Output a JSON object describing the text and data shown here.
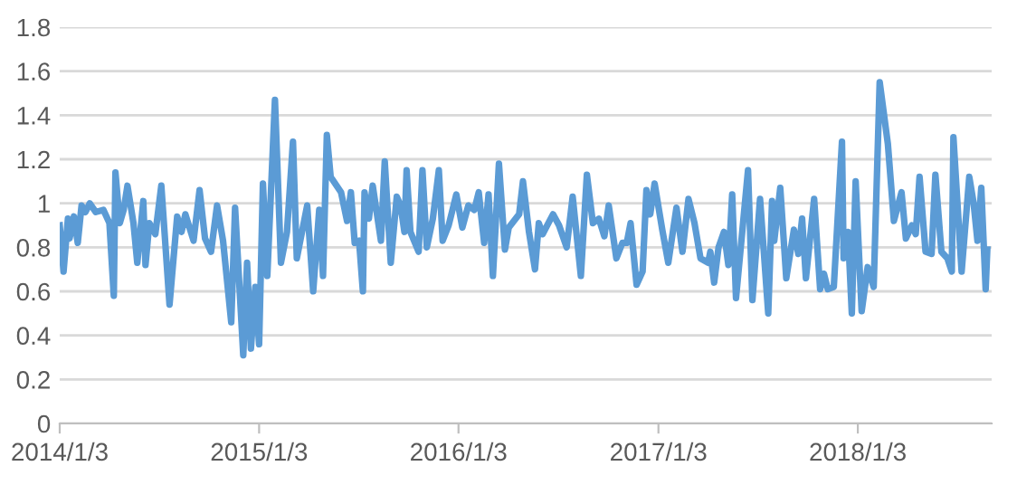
{
  "chart_data": {
    "type": "line",
    "x": [
      "2014-01-03",
      "2014-01-10",
      "2014-01-18",
      "2014-01-21",
      "2014-01-29",
      "2014-02-05",
      "2014-02-12",
      "2014-02-19",
      "2014-02-27",
      "2014-03-10",
      "2014-03-24",
      "2014-04-04",
      "2014-04-12",
      "2014-04-15",
      "2014-04-23",
      "2014-04-30",
      "2014-05-07",
      "2014-05-18",
      "2014-05-25",
      "2014-06-05",
      "2014-06-09",
      "2014-06-16",
      "2014-06-27",
      "2014-07-08",
      "2014-07-23",
      "2014-08-06",
      "2014-08-14",
      "2014-08-21",
      "2014-09-05",
      "2014-09-16",
      "2014-09-26",
      "2014-10-07",
      "2014-10-18",
      "2014-10-29",
      "2014-11-13",
      "2014-11-20",
      "2014-12-05",
      "2014-12-12",
      "2014-12-19",
      "2014-12-27",
      "2015-01-03",
      "2015-01-10",
      "2015-01-18",
      "2015-02-01",
      "2015-02-12",
      "2015-02-23",
      "2015-03-06",
      "2015-03-13",
      "2015-04-01",
      "2015-04-12",
      "2015-04-23",
      "2015-04-30",
      "2015-05-07",
      "2015-05-14",
      "2015-06-02",
      "2015-06-13",
      "2015-06-20",
      "2015-06-27",
      "2015-07-05",
      "2015-07-12",
      "2015-07-15",
      "2015-07-23",
      "2015-07-30",
      "2015-08-14",
      "2015-08-21",
      "2015-09-01",
      "2015-09-12",
      "2015-09-19",
      "2015-09-26",
      "2015-09-30",
      "2015-10-07",
      "2015-10-22",
      "2015-10-29",
      "2015-11-06",
      "2015-11-17",
      "2015-11-28",
      "2015-12-05",
      "2015-12-16",
      "2015-12-30",
      "2016-01-10",
      "2016-01-21",
      "2016-02-01",
      "2016-02-09",
      "2016-02-19",
      "2016-02-27",
      "2016-03-06",
      "2016-03-17",
      "2016-03-28",
      "2016-04-04",
      "2016-04-23",
      "2016-04-30",
      "2016-05-11",
      "2016-05-22",
      "2016-05-29",
      "2016-06-05",
      "2016-06-24",
      "2016-07-05",
      "2016-07-19",
      "2016-07-30",
      "2016-08-14",
      "2016-08-25",
      "2016-09-05",
      "2016-09-16",
      "2016-09-26",
      "2016-10-04",
      "2016-10-18",
      "2016-10-29",
      "2016-11-06",
      "2016-11-13",
      "2016-11-24",
      "2016-12-05",
      "2016-12-12",
      "2016-12-19",
      "2016-12-27",
      "2017-01-10",
      "2017-01-21",
      "2017-02-05",
      "2017-02-16",
      "2017-02-27",
      "2017-03-10",
      "2017-03-21",
      "2017-04-04",
      "2017-04-08",
      "2017-04-15",
      "2017-04-23",
      "2017-05-03",
      "2017-05-11",
      "2017-05-18",
      "2017-05-25",
      "2017-06-16",
      "2017-06-24",
      "2017-07-08",
      "2017-07-23",
      "2017-07-30",
      "2017-08-03",
      "2017-08-14",
      "2017-08-25",
      "2017-09-08",
      "2017-09-16",
      "2017-09-23",
      "2017-09-30",
      "2017-10-15",
      "2017-10-26",
      "2017-11-02",
      "2017-11-09",
      "2017-11-20",
      "2017-12-05",
      "2017-12-08",
      "2017-12-16",
      "2017-12-23",
      "2017-12-30",
      "2018-01-10",
      "2018-01-21",
      "2018-02-01",
      "2018-02-12",
      "2018-02-27",
      "2018-03-10",
      "2018-03-24",
      "2018-04-01",
      "2018-04-12",
      "2018-04-19",
      "2018-04-26",
      "2018-05-07",
      "2018-05-18",
      "2018-05-25",
      "2018-06-05",
      "2018-06-16",
      "2018-06-24",
      "2018-06-27",
      "2018-07-12",
      "2018-07-26",
      "2018-08-03",
      "2018-08-10",
      "2018-08-17",
      "2018-08-25",
      "2018-08-28"
    ],
    "series": [
      {
        "color": "#5b9bd5",
        "values": [
          0.9,
          0.69,
          0.93,
          0.84,
          0.94,
          0.82,
          0.99,
          0.96,
          1.0,
          0.96,
          0.97,
          0.91,
          0.58,
          1.14,
          0.91,
          0.97,
          1.08,
          0.91,
          0.73,
          1.01,
          0.72,
          0.91,
          0.86,
          1.08,
          0.54,
          0.94,
          0.87,
          0.95,
          0.83,
          1.06,
          0.84,
          0.78,
          0.99,
          0.83,
          0.46,
          0.98,
          0.31,
          0.73,
          0.34,
          0.62,
          0.36,
          1.09,
          0.67,
          1.47,
          0.73,
          0.87,
          1.28,
          0.75,
          0.99,
          0.6,
          0.97,
          0.67,
          1.31,
          1.12,
          1.05,
          0.92,
          1.05,
          0.82,
          0.83,
          0.6,
          1.05,
          0.93,
          1.08,
          0.83,
          1.19,
          0.73,
          1.03,
          0.99,
          0.87,
          1.15,
          0.87,
          0.78,
          1.15,
          0.8,
          0.93,
          1.15,
          0.83,
          0.9,
          1.04,
          0.89,
          0.99,
          0.97,
          1.05,
          0.82,
          1.04,
          0.67,
          1.18,
          0.79,
          0.89,
          0.95,
          1.1,
          0.87,
          0.7,
          0.91,
          0.86,
          0.95,
          0.9,
          0.8,
          1.03,
          0.67,
          1.13,
          0.91,
          0.93,
          0.85,
          0.99,
          0.75,
          0.82,
          0.82,
          0.91,
          0.63,
          0.69,
          1.06,
          0.95,
          1.09,
          0.88,
          0.73,
          0.98,
          0.78,
          1.02,
          0.91,
          0.75,
          0.73,
          0.78,
          0.64,
          0.8,
          0.87,
          0.72,
          1.04,
          0.57,
          1.15,
          0.56,
          1.02,
          0.5,
          1.01,
          0.83,
          1.07,
          0.66,
          0.88,
          0.77,
          0.93,
          0.66,
          1.02,
          0.61,
          0.68,
          0.61,
          0.62,
          1.28,
          0.75,
          0.87,
          0.5,
          1.1,
          0.51,
          0.71,
          0.62,
          1.55,
          1.27,
          0.92,
          1.05,
          0.84,
          0.9,
          0.86,
          1.12,
          0.78,
          0.77,
          1.13,
          0.78,
          0.75,
          0.69,
          1.3,
          0.69,
          1.12,
          1.0,
          0.83,
          1.07,
          0.61,
          0.79
        ]
      }
    ],
    "xlim": [
      "2014-01-03",
      "2018-09-05"
    ],
    "xticks": [
      {
        "value": "2014-01-03",
        "label": "2014/1/3"
      },
      {
        "value": "2015-01-03",
        "label": "2015/1/3"
      },
      {
        "value": "2016-01-03",
        "label": "2016/1/3"
      },
      {
        "value": "2017-01-03",
        "label": "2017/1/3"
      },
      {
        "value": "2018-01-03",
        "label": "2018/1/3"
      }
    ],
    "ylim": [
      0,
      1.8
    ],
    "yticks": [
      0,
      0.2,
      0.4,
      0.6,
      0.8,
      1,
      1.2,
      1.4,
      1.6,
      1.8
    ],
    "grid": "y",
    "line_style": "solid",
    "marker": "none",
    "legend": false
  }
}
